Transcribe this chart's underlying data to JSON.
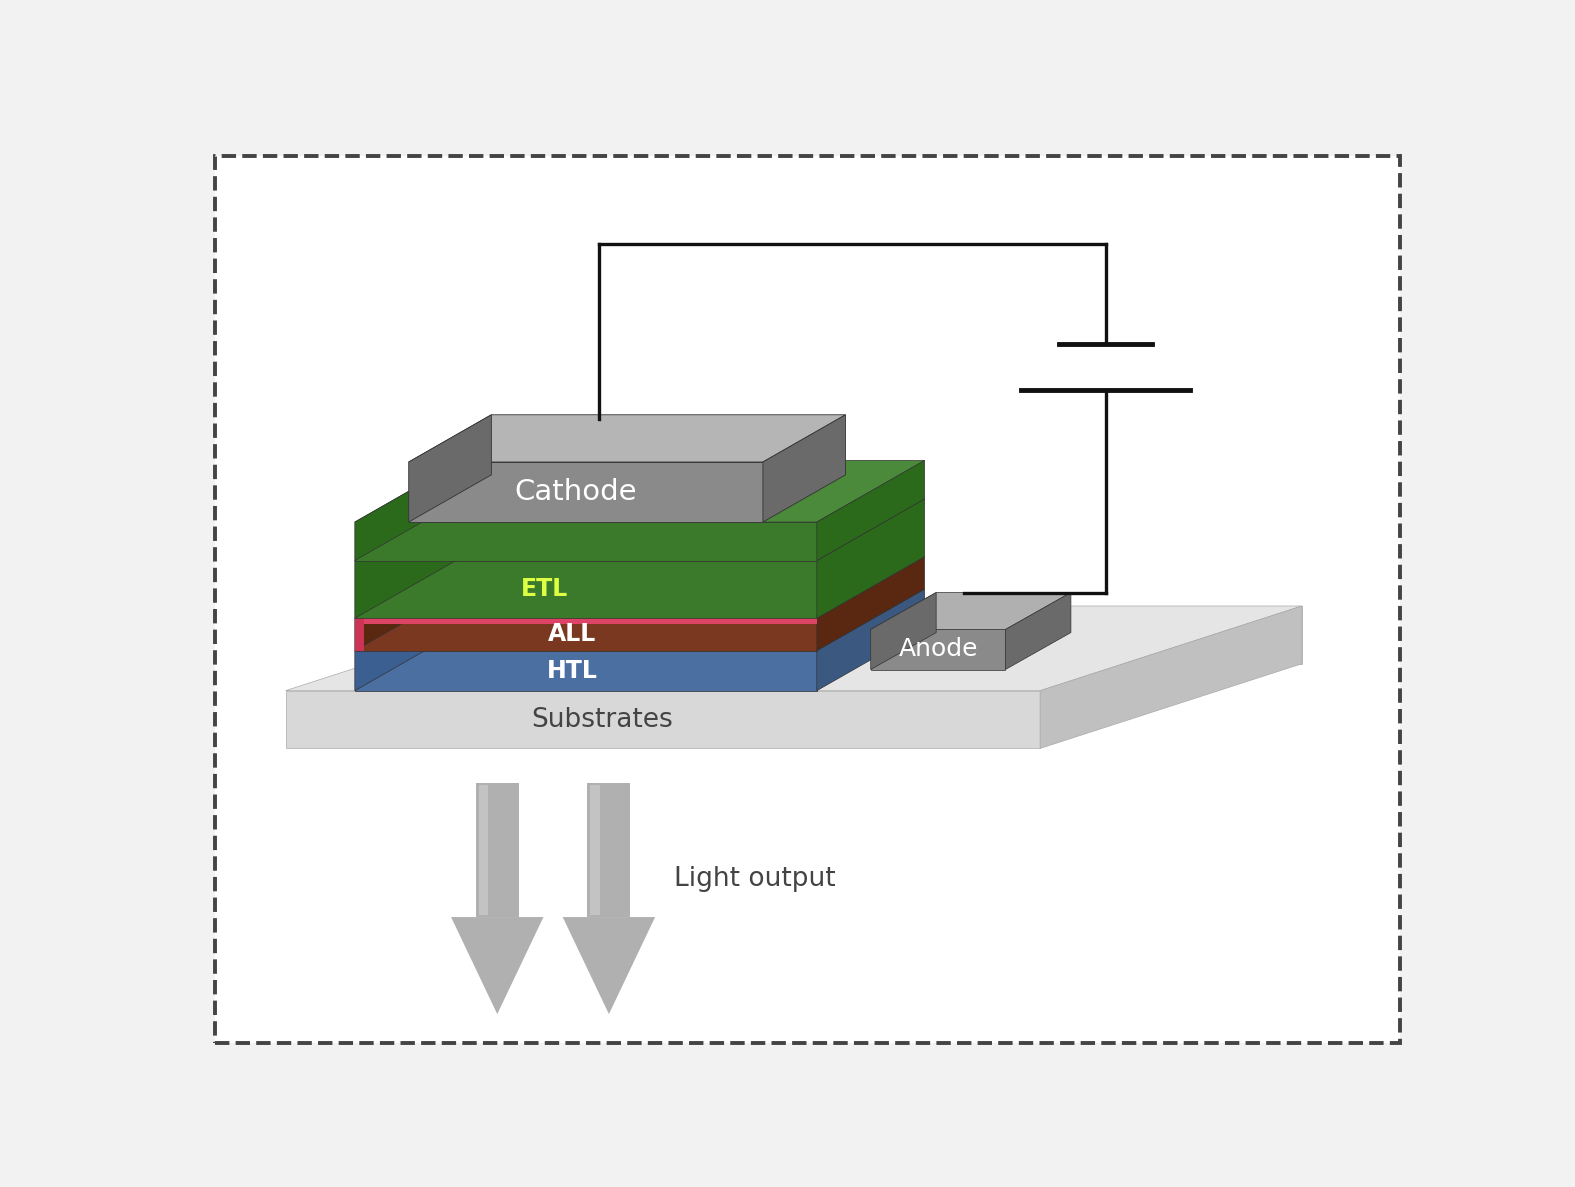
{
  "bg_color": "#f2f2f2",
  "border_color": "#444444",
  "white_bg": "#ffffff",
  "substrate_front": "#d5d5d5",
  "substrate_top": "#e8e8e8",
  "substrate_side_r": "#c0c0c0",
  "htl_front": "#4a6fa0",
  "htl_top": "#6888b8",
  "htl_left": "#3a5f90",
  "htl_right": "#3a5880",
  "all_front": "#7a3820",
  "all_top": "#9a5030",
  "all_left": "#5a2810",
  "all_right": "#5a2810",
  "all_accent": "#cc3355",
  "etl_front": "#3a7a2a",
  "etl_top": "#4a8a3a",
  "etl_left": "#2a6a1a",
  "etl_right": "#2a6a1a",
  "cathode_front": "#8a8a8a",
  "cathode_top": "#b5b5b5",
  "cathode_left": "#6a6a6a",
  "cathode_right": "#6a6a6a",
  "anode_front": "#8a8a8a",
  "anode_top": "#b0b0b0",
  "anode_left": "#6a6a6a",
  "anode_right": "#6a6a6a",
  "wire_color": "#111111",
  "arrow_fill": "#b0b0b0",
  "arrow_light": "#cccccc",
  "labels": {
    "cathode": "Cathode",
    "etl": "ETL",
    "all": "ALL",
    "htl": "HTL",
    "substrate": "Substrates",
    "anode": "Anode",
    "light": "Light output"
  }
}
